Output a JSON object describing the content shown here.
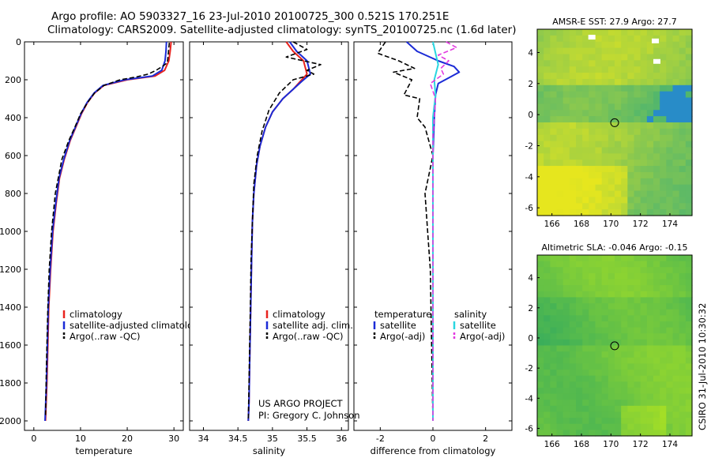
{
  "figure": {
    "title_line1": "Argo profile: AO 5903327_16 23-Jul-2010 20100725_300 0.521S 170.251E",
    "title_line2": "Climatology: CARS2009. Satellite-adjusted climatology: synTS_20100725.nc (1.6d later)",
    "credit_line1": "US ARGO PROJECT",
    "credit_line2": "PI: Gregory C. Johnson",
    "side_stamp": "CSIRO 31-Jul-2010 10:30:32"
  },
  "colors": {
    "climatology": "#e8231e",
    "satellite": "#1b2bd6",
    "argo": "#000000",
    "sat_diff": "#2ad6e0",
    "argo_adj": "#e23ae0"
  },
  "chart_data": [
    {
      "id": "temperature",
      "type": "line",
      "xlabel": "temperature",
      "xlim": [
        -2,
        32
      ],
      "ylim": [
        2050,
        0
      ],
      "xticks": [
        0,
        10,
        20,
        30
      ],
      "yticks": [
        0,
        200,
        400,
        600,
        800,
        1000,
        1200,
        1400,
        1600,
        1800,
        2000
      ],
      "legend": [
        "climatology",
        "satellite-adjusted climatology",
        "Argo(..raw -QC)"
      ],
      "series": [
        {
          "name": "climatology",
          "x": [
            29.4,
            29.2,
            28.9,
            28.0,
            26.0,
            20.0,
            15.0,
            13.0,
            11.5,
            10.2,
            9.0,
            7.8,
            6.5,
            5.5,
            4.8,
            4.1,
            3.6,
            3.2,
            3.0,
            2.8,
            2.5
          ],
          "y": [
            0,
            50,
            100,
            150,
            180,
            200,
            230,
            270,
            320,
            380,
            450,
            520,
            620,
            720,
            850,
            1000,
            1200,
            1400,
            1600,
            1800,
            2000
          ]
        },
        {
          "name": "satellite",
          "x": [
            28.4,
            28.3,
            28.1,
            27.4,
            25.4,
            19.5,
            14.8,
            12.9,
            11.4,
            10.1,
            8.9,
            7.7,
            6.4,
            5.4,
            4.7,
            4.0,
            3.5,
            3.1,
            2.9,
            2.7,
            2.4
          ],
          "y": [
            0,
            50,
            100,
            150,
            180,
            200,
            230,
            270,
            320,
            380,
            450,
            520,
            620,
            720,
            850,
            1000,
            1200,
            1400,
            1600,
            1800,
            2000
          ]
        },
        {
          "name": "argo",
          "x": [
            29.0,
            28.8,
            28.6,
            27.5,
            26.2,
            24.5,
            22.0,
            18.5,
            15.0,
            13.0,
            11.5,
            10.0,
            8.8,
            7.5,
            6.0,
            4.6,
            3.8,
            3.3,
            3.0,
            2.7,
            2.5
          ],
          "y": [
            5,
            60,
            110,
            130,
            150,
            170,
            185,
            200,
            230,
            270,
            320,
            380,
            450,
            520,
            620,
            800,
            1000,
            1200,
            1400,
            1700,
            1980
          ]
        }
      ]
    },
    {
      "id": "salinity",
      "type": "line",
      "xlabel": "salinity",
      "xlim": [
        33.8,
        36.1
      ],
      "ylim": [
        2050,
        0
      ],
      "xticks": [
        34,
        34.5,
        35,
        35.5,
        36
      ],
      "legend": [
        "climatology",
        "satellite adj. clim.",
        "Argo(..raw -QC)"
      ],
      "series": [
        {
          "name": "climatology",
          "x": [
            35.2,
            35.3,
            35.45,
            35.5,
            35.4,
            35.3,
            35.15,
            35.0,
            34.9,
            34.82,
            34.77,
            34.73,
            34.71,
            34.7,
            34.69,
            34.68,
            34.67,
            34.66,
            34.65
          ],
          "y": [
            0,
            50,
            100,
            170,
            210,
            250,
            300,
            370,
            450,
            550,
            650,
            800,
            950,
            1100,
            1300,
            1500,
            1700,
            1900,
            2000
          ]
        },
        {
          "name": "satellite",
          "x": [
            35.25,
            35.35,
            35.5,
            35.55,
            35.42,
            35.3,
            35.15,
            35.0,
            34.9,
            34.82,
            34.77,
            34.73,
            34.71,
            34.7,
            34.69,
            34.68,
            34.67,
            34.66,
            34.65
          ],
          "y": [
            0,
            50,
            100,
            170,
            210,
            250,
            300,
            370,
            450,
            550,
            650,
            800,
            950,
            1100,
            1300,
            1500,
            1700,
            1900,
            2000
          ]
        },
        {
          "name": "argo",
          "x": [
            35.3,
            35.5,
            35.2,
            35.7,
            35.5,
            35.6,
            35.3,
            35.1,
            34.95,
            34.85,
            34.78,
            34.73,
            34.71,
            34.69,
            34.68,
            34.67,
            34.66,
            34.65
          ],
          "y": [
            0,
            40,
            80,
            120,
            150,
            170,
            200,
            270,
            360,
            470,
            600,
            750,
            950,
            1150,
            1400,
            1600,
            1800,
            2000
          ]
        }
      ]
    },
    {
      "id": "difference",
      "type": "line",
      "xlabel": "difference from climatology",
      "xlim": [
        -3,
        3
      ],
      "ylim": [
        2050,
        0
      ],
      "xticks": [
        -2,
        0,
        2
      ],
      "legend": [
        "temperature",
        "satellite",
        "Argo(-adj)",
        "salinity",
        "satellite",
        "Argo(-adj)"
      ],
      "series": [
        {
          "name": "temperature satellite",
          "x": [
            -1.0,
            -0.6,
            0.2,
            0.8,
            1.0,
            0.6,
            0.2,
            0.1,
            0.05,
            0.0,
            0.0,
            0.0,
            0.0
          ],
          "y": [
            0,
            50,
            100,
            130,
            160,
            190,
            220,
            280,
            400,
            600,
            1000,
            1500,
            2000
          ]
        },
        {
          "name": "temperature Argo(-adj)",
          "x": [
            -1.8,
            -2.1,
            -1.3,
            -0.7,
            -1.5,
            -0.8,
            -1.1,
            -0.5,
            -0.6,
            -0.3,
            -0.2,
            0.0,
            -0.3,
            -0.2,
            -0.1,
            0.0
          ],
          "y": [
            0,
            60,
            100,
            140,
            160,
            200,
            280,
            300,
            400,
            450,
            500,
            600,
            800,
            1000,
            1200,
            2000
          ]
        },
        {
          "name": "salinity satellite",
          "x": [
            0.0,
            0.1,
            0.2,
            0.05,
            0.1,
            0.0,
            0.0,
            0.0,
            0.0
          ],
          "y": [
            0,
            60,
            120,
            200,
            280,
            400,
            800,
            1400,
            2000
          ]
        },
        {
          "name": "salinity Argo(-adj)",
          "x": [
            0.5,
            0.9,
            0.2,
            0.6,
            0.3,
            0.4,
            -0.1,
            0.1,
            0.0,
            0.0,
            0.0
          ],
          "y": [
            0,
            30,
            70,
            100,
            140,
            170,
            220,
            300,
            500,
            1000,
            2000
          ]
        }
      ]
    },
    {
      "id": "sst_map",
      "type": "heatmap",
      "title": "AMSR-E SST: 27.9 Argo: 27.7",
      "xlim": [
        165,
        175.5
      ],
      "ylim": [
        -6.5,
        5.5
      ],
      "xticks": [
        166,
        168,
        170,
        172,
        174
      ],
      "yticks": [
        -6,
        -4,
        -2,
        0,
        2,
        4
      ],
      "profile_marker": {
        "lon": 170.251,
        "lat": -0.521
      }
    },
    {
      "id": "sla_map",
      "type": "heatmap",
      "title": "Altimetric SLA: -0.046 Argo: -0.15",
      "xlim": [
        165,
        175.5
      ],
      "ylim": [
        -6.5,
        5.5
      ],
      "xticks": [
        166,
        168,
        170,
        172,
        174
      ],
      "yticks": [
        -6,
        -4,
        -2,
        0,
        2,
        4
      ],
      "profile_marker": {
        "lon": 170.251,
        "lat": -0.521
      }
    }
  ]
}
